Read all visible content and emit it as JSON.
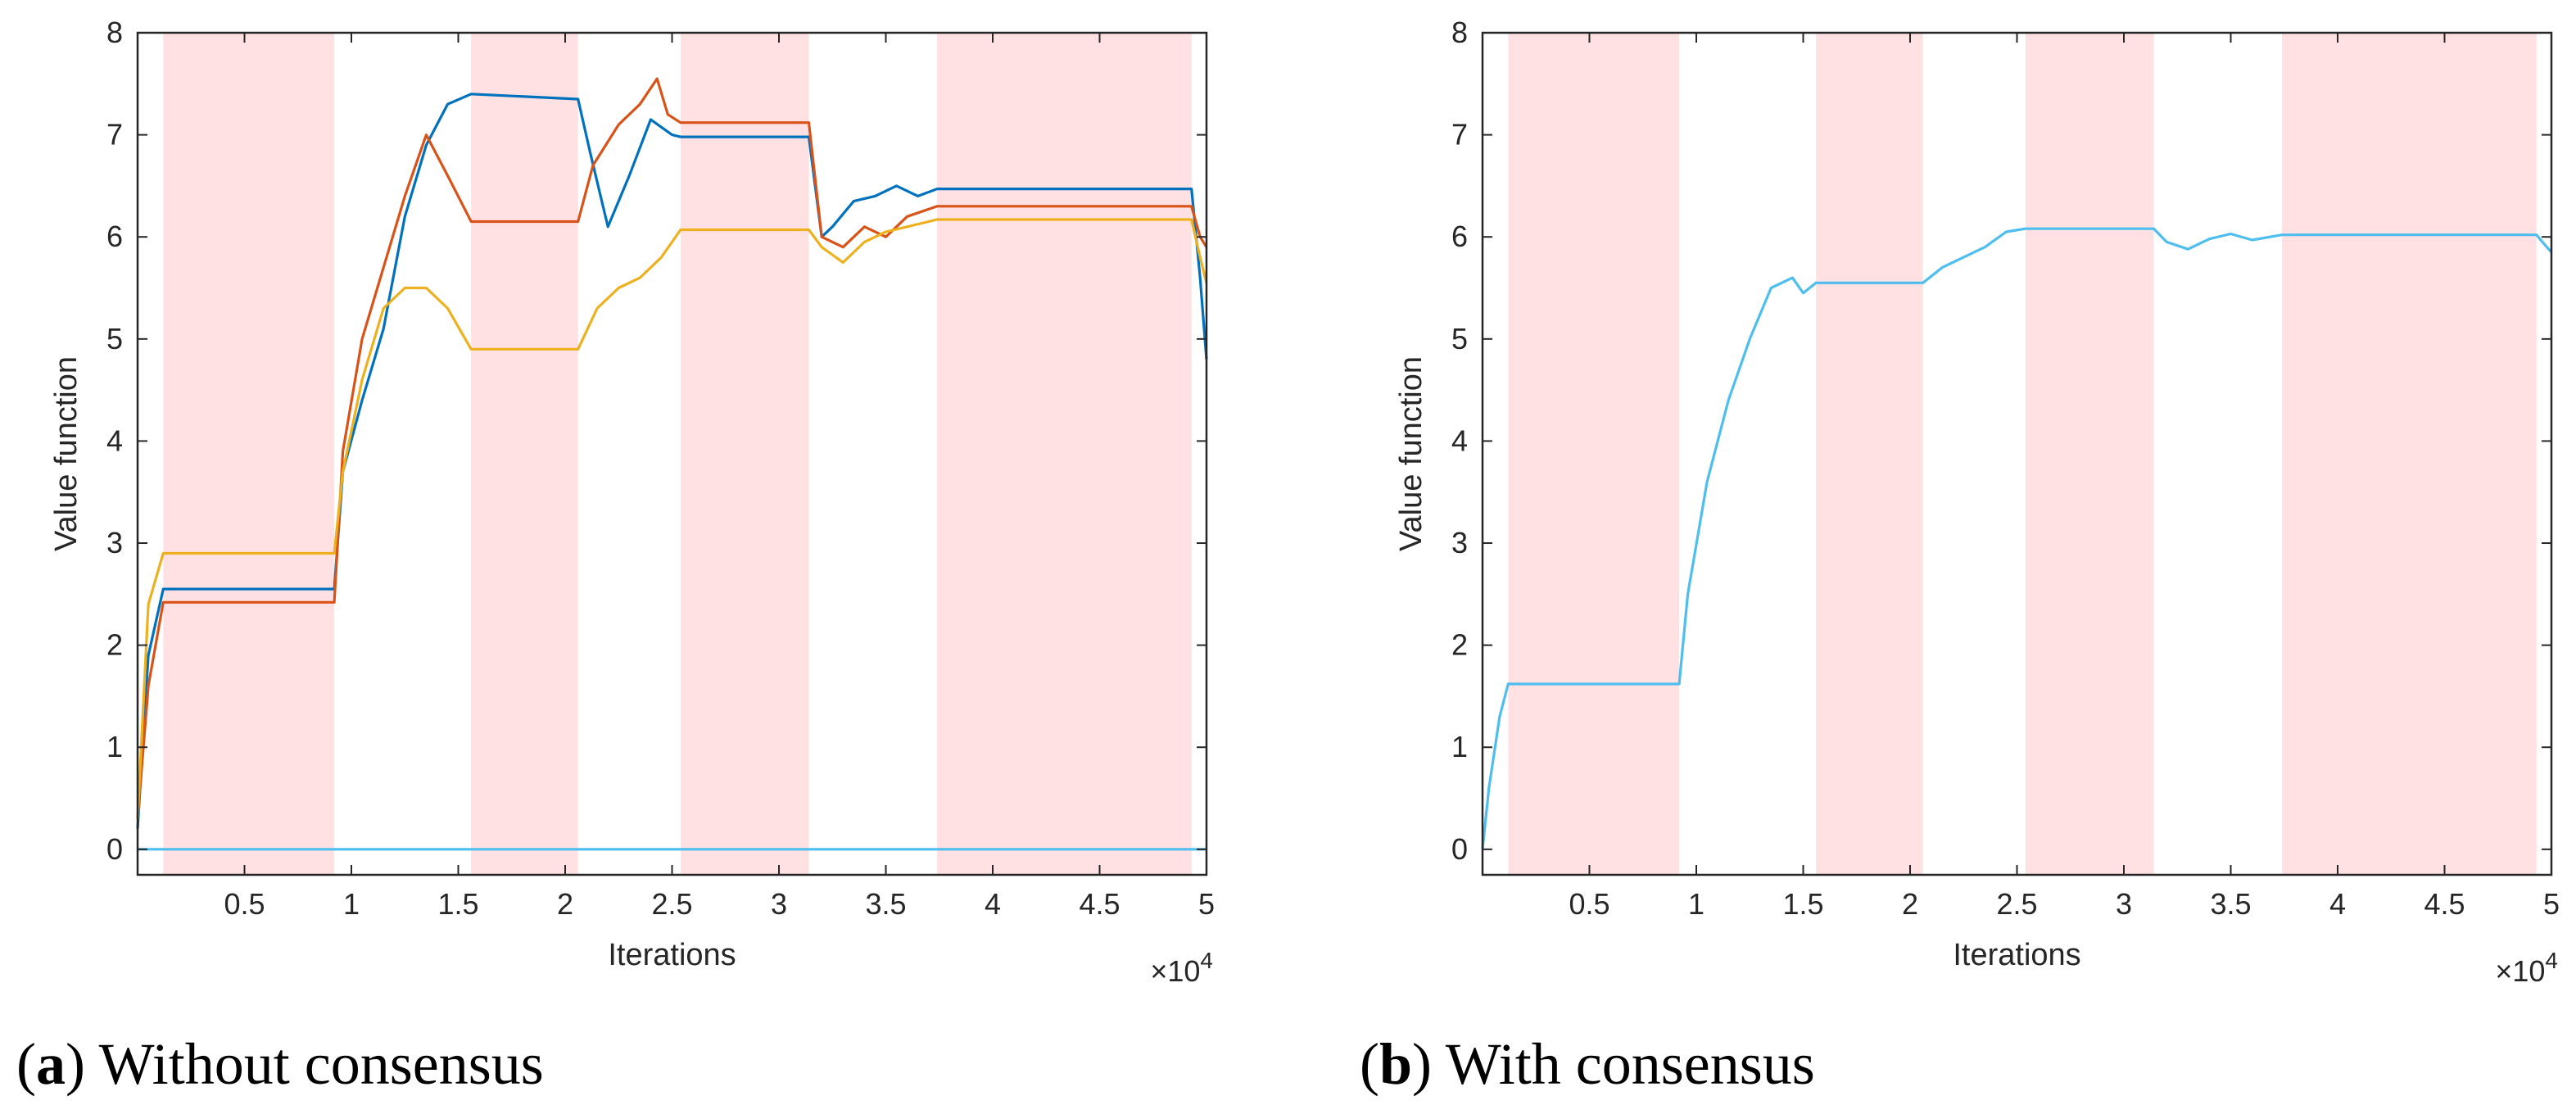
{
  "chart_data": [
    {
      "type": "line",
      "panel": "a",
      "caption_tag": "a",
      "caption_text": "Without consensus",
      "xlabel": "Iterations",
      "ylabel": "Value function",
      "x_exponent": "×10",
      "x_exponent_power": "4",
      "xlim": [
        0,
        50000
      ],
      "ylim": [
        -0.25,
        8
      ],
      "xticks": [
        5000,
        10000,
        15000,
        20000,
        25000,
        30000,
        35000,
        40000,
        45000,
        50000
      ],
      "xtick_labels": [
        "0.5",
        "1",
        "1.5",
        "2",
        "2.5",
        "3",
        "3.5",
        "4",
        "4.5",
        "5"
      ],
      "yticks": [
        0,
        1,
        2,
        3,
        4,
        5,
        6,
        7,
        8
      ],
      "ytick_labels": [
        "0",
        "1",
        "2",
        "3",
        "4",
        "5",
        "6",
        "7",
        "8"
      ],
      "shaded_intervals": [
        [
          1200,
          9200
        ],
        [
          15600,
          20600
        ],
        [
          25400,
          31400
        ],
        [
          37400,
          49300
        ]
      ],
      "shade_color": "#ffe0e3",
      "series": [
        {
          "name": "series-1",
          "color": "#0072bd",
          "x": [
            0,
            500,
            1200,
            9200,
            9600,
            10500,
            11500,
            12500,
            13500,
            14500,
            15600,
            20600,
            21200,
            22000,
            23000,
            24000,
            25000,
            25400,
            31400,
            32000,
            32500,
            33500,
            34500,
            35500,
            36500,
            37400,
            49300,
            49700,
            50000
          ],
          "y": [
            0.2,
            1.9,
            2.55,
            2.55,
            3.7,
            4.4,
            5.1,
            6.2,
            6.9,
            7.3,
            7.4,
            7.35,
            6.8,
            6.1,
            6.6,
            7.15,
            7.0,
            6.98,
            6.98,
            6.0,
            6.1,
            6.35,
            6.4,
            6.5,
            6.4,
            6.47,
            6.47,
            5.6,
            4.8
          ]
        },
        {
          "name": "series-2",
          "color": "#d95319",
          "x": [
            0,
            500,
            1200,
            9200,
            9600,
            10500,
            11500,
            12500,
            13500,
            14500,
            15600,
            20600,
            21300,
            22500,
            23500,
            24300,
            24800,
            25400,
            31400,
            32000,
            33000,
            34000,
            35000,
            36000,
            37400,
            49300,
            49700,
            50000
          ],
          "y": [
            0.3,
            1.6,
            2.42,
            2.42,
            3.9,
            5.0,
            5.7,
            6.4,
            7.0,
            6.6,
            6.15,
            6.15,
            6.7,
            7.1,
            7.3,
            7.55,
            7.2,
            7.12,
            7.12,
            6.0,
            5.9,
            6.1,
            6.0,
            6.2,
            6.3,
            6.3,
            6.0,
            5.9
          ]
        },
        {
          "name": "series-3",
          "color": "#edb120",
          "x": [
            0,
            500,
            1200,
            9200,
            9600,
            10500,
            11500,
            12500,
            13500,
            14500,
            15600,
            20600,
            21500,
            22500,
            23500,
            24500,
            25400,
            31400,
            32000,
            33000,
            34000,
            35000,
            36000,
            37400,
            49300,
            49700,
            50000
          ],
          "y": [
            0.3,
            2.4,
            2.9,
            2.9,
            3.7,
            4.6,
            5.3,
            5.5,
            5.5,
            5.3,
            4.9,
            4.9,
            5.3,
            5.5,
            5.6,
            5.8,
            6.07,
            6.07,
            5.9,
            5.75,
            5.95,
            6.05,
            6.1,
            6.17,
            6.17,
            5.8,
            5.55
          ]
        },
        {
          "name": "series-4",
          "color": "#4dbeee",
          "x": [
            0,
            50000
          ],
          "y": [
            0,
            0
          ]
        }
      ]
    },
    {
      "type": "line",
      "panel": "b",
      "caption_tag": "b",
      "caption_text": "With consensus",
      "xlabel": "Iterations",
      "ylabel": "Value function",
      "x_exponent": "×10",
      "x_exponent_power": "4",
      "xlim": [
        0,
        50000
      ],
      "ylim": [
        -0.25,
        8
      ],
      "xticks": [
        5000,
        10000,
        15000,
        20000,
        25000,
        30000,
        35000,
        40000,
        45000,
        50000
      ],
      "xtick_labels": [
        "0.5",
        "1",
        "1.5",
        "2",
        "2.5",
        "3",
        "3.5",
        "4",
        "4.5",
        "5"
      ],
      "yticks": [
        0,
        1,
        2,
        3,
        4,
        5,
        6,
        7,
        8
      ],
      "ytick_labels": [
        "0",
        "1",
        "2",
        "3",
        "4",
        "5",
        "6",
        "7",
        "8"
      ],
      "shaded_intervals": [
        [
          1200,
          9200
        ],
        [
          15600,
          20600
        ],
        [
          25400,
          31400
        ],
        [
          37400,
          49300
        ]
      ],
      "shade_color": "#ffe0e3",
      "series": [
        {
          "name": "consensus",
          "color": "#4dbeee",
          "x": [
            0,
            300,
            800,
            1200,
            9200,
            9600,
            10500,
            11500,
            12500,
            13500,
            14500,
            15000,
            15600,
            20600,
            21500,
            22500,
            23500,
            24500,
            25400,
            31400,
            32000,
            33000,
            34000,
            35000,
            36000,
            37400,
            49300,
            49700,
            50000
          ],
          "y": [
            0,
            0.6,
            1.3,
            1.62,
            1.62,
            2.5,
            3.6,
            4.4,
            5.0,
            5.5,
            5.6,
            5.45,
            5.55,
            5.55,
            5.7,
            5.8,
            5.9,
            6.05,
            6.08,
            6.08,
            5.95,
            5.88,
            5.98,
            6.03,
            5.97,
            6.02,
            6.02,
            5.92,
            5.85
          ]
        }
      ]
    }
  ]
}
